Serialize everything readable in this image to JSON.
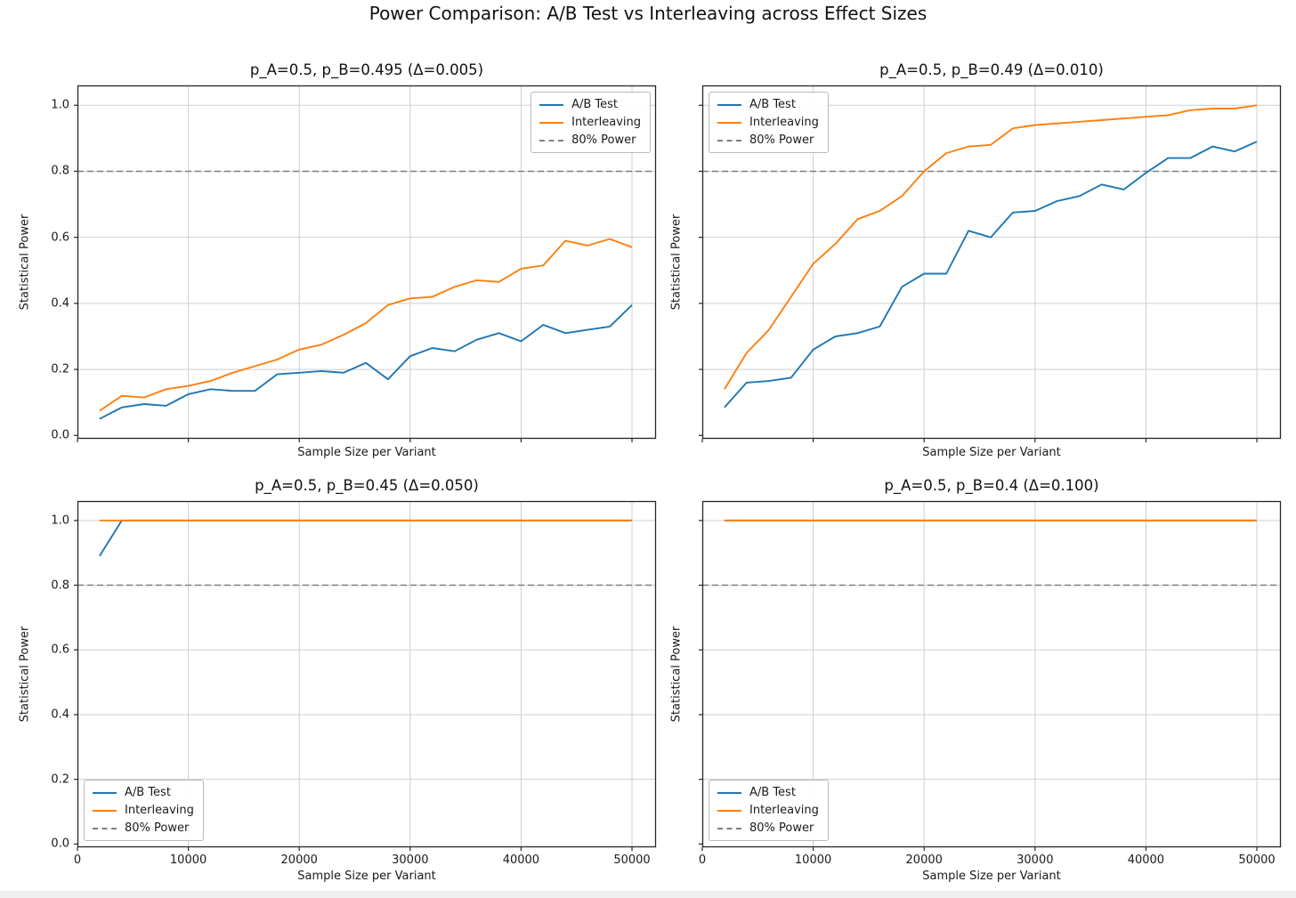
{
  "figure": {
    "suptitle": "Power Comparison: A/B Test vs Interleaving across Effect Sizes"
  },
  "palette": {
    "ab_test": "#1f77b4",
    "interleaving": "#ff7f0e",
    "power_ref": "#7f7f7f",
    "grid": "#cfcfcf",
    "spine": "#262626"
  },
  "axes": {
    "xlabel": "Sample Size per Variant",
    "ylabel": "Statistical Power",
    "xticks": [
      0,
      10000,
      20000,
      30000,
      40000,
      50000
    ],
    "xtick_labels": [
      "0",
      "10000",
      "20000",
      "30000",
      "40000",
      "50000"
    ],
    "yticks": [
      0.0,
      0.2,
      0.4,
      0.6,
      0.8,
      1.0
    ],
    "ytick_labels": [
      "0.0",
      "0.2",
      "0.4",
      "0.6",
      "0.8",
      "1.0"
    ]
  },
  "legend": {
    "entries": [
      {
        "label": "A/B Test",
        "style": "solid",
        "color": "#1f77b4"
      },
      {
        "label": "Interleaving",
        "style": "solid",
        "color": "#ff7f0e"
      },
      {
        "label": "80% Power",
        "style": "dashed",
        "color": "#7f7f7f"
      }
    ]
  },
  "chart_data": [
    {
      "panel": "top-left",
      "type": "line",
      "title": "p_A=0.5, p_B=0.495 (Δ=0.005)",
      "xlabel": "Sample Size per Variant",
      "ylabel": "Statistical Power",
      "legend_position": "upper-right",
      "show_xtick_labels": false,
      "show_ytick_labels": true,
      "ref_line": {
        "label": "80% Power",
        "y": 0.8
      },
      "xlim": [
        0,
        52165
      ],
      "ylim": [
        -0.01,
        1.06
      ],
      "x": [
        2000,
        4000,
        6000,
        8000,
        10000,
        12000,
        14000,
        16000,
        18000,
        20000,
        22000,
        24000,
        26000,
        28000,
        30000,
        32000,
        34000,
        36000,
        38000,
        40000,
        42000,
        44000,
        46000,
        48000,
        50000
      ],
      "series": [
        {
          "name": "A/B Test",
          "values": [
            0.05,
            0.085,
            0.095,
            0.09,
            0.125,
            0.14,
            0.135,
            0.135,
            0.185,
            0.19,
            0.195,
            0.19,
            0.22,
            0.17,
            0.24,
            0.265,
            0.255,
            0.29,
            0.31,
            0.285,
            0.335,
            0.31,
            0.32,
            0.33,
            0.395
          ]
        },
        {
          "name": "Interleaving",
          "values": [
            0.075,
            0.12,
            0.115,
            0.14,
            0.15,
            0.165,
            0.19,
            0.21,
            0.23,
            0.26,
            0.275,
            0.305,
            0.34,
            0.395,
            0.415,
            0.42,
            0.45,
            0.47,
            0.465,
            0.505,
            0.515,
            0.59,
            0.575,
            0.595,
            0.57
          ]
        }
      ]
    },
    {
      "panel": "top-right",
      "type": "line",
      "title": "p_A=0.5, p_B=0.49 (Δ=0.010)",
      "xlabel": "Sample Size per Variant",
      "ylabel": "Statistical Power",
      "legend_position": "upper-left",
      "show_xtick_labels": false,
      "show_ytick_labels": false,
      "ref_line": {
        "label": "80% Power",
        "y": 0.8
      },
      "xlim": [
        0,
        52165
      ],
      "ylim": [
        -0.01,
        1.06
      ],
      "x": [
        2000,
        4000,
        6000,
        8000,
        10000,
        12000,
        14000,
        16000,
        18000,
        20000,
        22000,
        24000,
        26000,
        28000,
        30000,
        32000,
        34000,
        36000,
        38000,
        40000,
        42000,
        44000,
        46000,
        48000,
        50000
      ],
      "series": [
        {
          "name": "A/B Test",
          "values": [
            0.085,
            0.16,
            0.165,
            0.175,
            0.26,
            0.3,
            0.31,
            0.33,
            0.45,
            0.49,
            0.49,
            0.62,
            0.6,
            0.675,
            0.68,
            0.71,
            0.725,
            0.76,
            0.745,
            0.795,
            0.84,
            0.84,
            0.875,
            0.86,
            0.89
          ]
        },
        {
          "name": "Interleaving",
          "values": [
            0.14,
            0.25,
            0.32,
            0.42,
            0.52,
            0.58,
            0.655,
            0.68,
            0.725,
            0.8,
            0.855,
            0.875,
            0.88,
            0.93,
            0.94,
            0.945,
            0.95,
            0.955,
            0.96,
            0.965,
            0.97,
            0.985,
            0.99,
            0.99,
            1.0
          ]
        }
      ]
    },
    {
      "panel": "bottom-left",
      "type": "line",
      "title": "p_A=0.5, p_B=0.45 (Δ=0.050)",
      "xlabel": "Sample Size per Variant",
      "ylabel": "Statistical Power",
      "legend_position": "lower-left",
      "show_xtick_labels": true,
      "show_ytick_labels": true,
      "ref_line": {
        "label": "80% Power",
        "y": 0.8
      },
      "xlim": [
        0,
        52165
      ],
      "ylim": [
        -0.01,
        1.06
      ],
      "x": [
        2000,
        4000,
        6000,
        8000,
        10000,
        12000,
        14000,
        16000,
        18000,
        20000,
        22000,
        24000,
        26000,
        28000,
        30000,
        32000,
        34000,
        36000,
        38000,
        40000,
        42000,
        44000,
        46000,
        48000,
        50000
      ],
      "series": [
        {
          "name": "A/B Test",
          "values": [
            0.89,
            1.0,
            1.0,
            1.0,
            1.0,
            1.0,
            1.0,
            1.0,
            1.0,
            1.0,
            1.0,
            1.0,
            1.0,
            1.0,
            1.0,
            1.0,
            1.0,
            1.0,
            1.0,
            1.0,
            1.0,
            1.0,
            1.0,
            1.0,
            1.0
          ]
        },
        {
          "name": "Interleaving",
          "values": [
            1.0,
            1.0,
            1.0,
            1.0,
            1.0,
            1.0,
            1.0,
            1.0,
            1.0,
            1.0,
            1.0,
            1.0,
            1.0,
            1.0,
            1.0,
            1.0,
            1.0,
            1.0,
            1.0,
            1.0,
            1.0,
            1.0,
            1.0,
            1.0,
            1.0
          ]
        }
      ]
    },
    {
      "panel": "bottom-right",
      "type": "line",
      "title": "p_A=0.5, p_B=0.4 (Δ=0.100)",
      "xlabel": "Sample Size per Variant",
      "ylabel": "Statistical Power",
      "legend_position": "lower-left",
      "show_xtick_labels": true,
      "show_ytick_labels": false,
      "ref_line": {
        "label": "80% Power",
        "y": 0.8
      },
      "xlim": [
        0,
        52165
      ],
      "ylim": [
        -0.01,
        1.06
      ],
      "x": [
        2000,
        4000,
        6000,
        8000,
        10000,
        12000,
        14000,
        16000,
        18000,
        20000,
        22000,
        24000,
        26000,
        28000,
        30000,
        32000,
        34000,
        36000,
        38000,
        40000,
        42000,
        44000,
        46000,
        48000,
        50000
      ],
      "series": [
        {
          "name": "A/B Test",
          "values": [
            1.0,
            1.0,
            1.0,
            1.0,
            1.0,
            1.0,
            1.0,
            1.0,
            1.0,
            1.0,
            1.0,
            1.0,
            1.0,
            1.0,
            1.0,
            1.0,
            1.0,
            1.0,
            1.0,
            1.0,
            1.0,
            1.0,
            1.0,
            1.0,
            1.0
          ]
        },
        {
          "name": "Interleaving",
          "values": [
            1.0,
            1.0,
            1.0,
            1.0,
            1.0,
            1.0,
            1.0,
            1.0,
            1.0,
            1.0,
            1.0,
            1.0,
            1.0,
            1.0,
            1.0,
            1.0,
            1.0,
            1.0,
            1.0,
            1.0,
            1.0,
            1.0,
            1.0,
            1.0,
            1.0
          ]
        }
      ]
    }
  ]
}
